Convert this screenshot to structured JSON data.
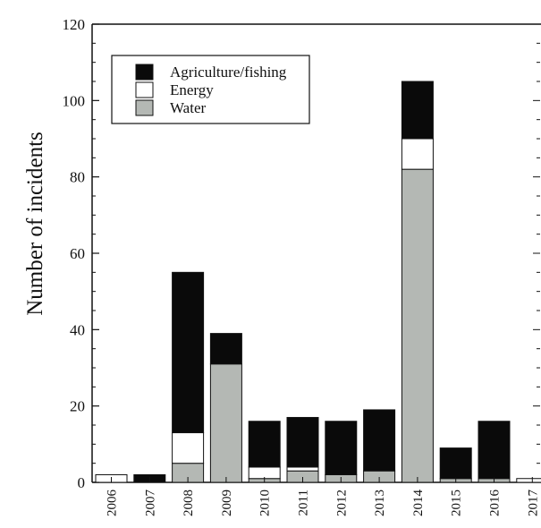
{
  "chart_data": {
    "type": "bar",
    "stacked": true,
    "title": "",
    "xlabel": "",
    "ylabel": "Number of incidents",
    "ylim": [
      0,
      120
    ],
    "yticks": [
      0,
      20,
      40,
      60,
      80,
      100,
      120
    ],
    "categories": [
      "2006",
      "2007",
      "2008",
      "2009",
      "2010",
      "2011",
      "2012",
      "2013",
      "2014",
      "2015",
      "2016",
      "2017"
    ],
    "series": [
      {
        "name": "Water",
        "color": "#b4b8b4",
        "values": [
          0,
          0,
          5,
          31,
          1,
          3,
          2,
          3,
          82,
          1,
          1,
          0
        ]
      },
      {
        "name": "Energy",
        "color": "#ffffff",
        "values": [
          2,
          0,
          8,
          0,
          3,
          1,
          0,
          0,
          8,
          0,
          0,
          1
        ]
      },
      {
        "name": "Agriculture/fishing",
        "color": "#0a0a0a",
        "values": [
          0,
          2,
          42,
          8,
          12,
          13,
          14,
          16,
          15,
          8,
          15,
          0
        ]
      }
    ],
    "legend": {
      "position": "top-left",
      "items": [
        {
          "label": "Agriculture/fishing",
          "color": "#0a0a0a"
        },
        {
          "label": "Energy",
          "color": "#ffffff"
        },
        {
          "label": "Water",
          "color": "#b4b8b4"
        }
      ]
    },
    "grid": false
  }
}
